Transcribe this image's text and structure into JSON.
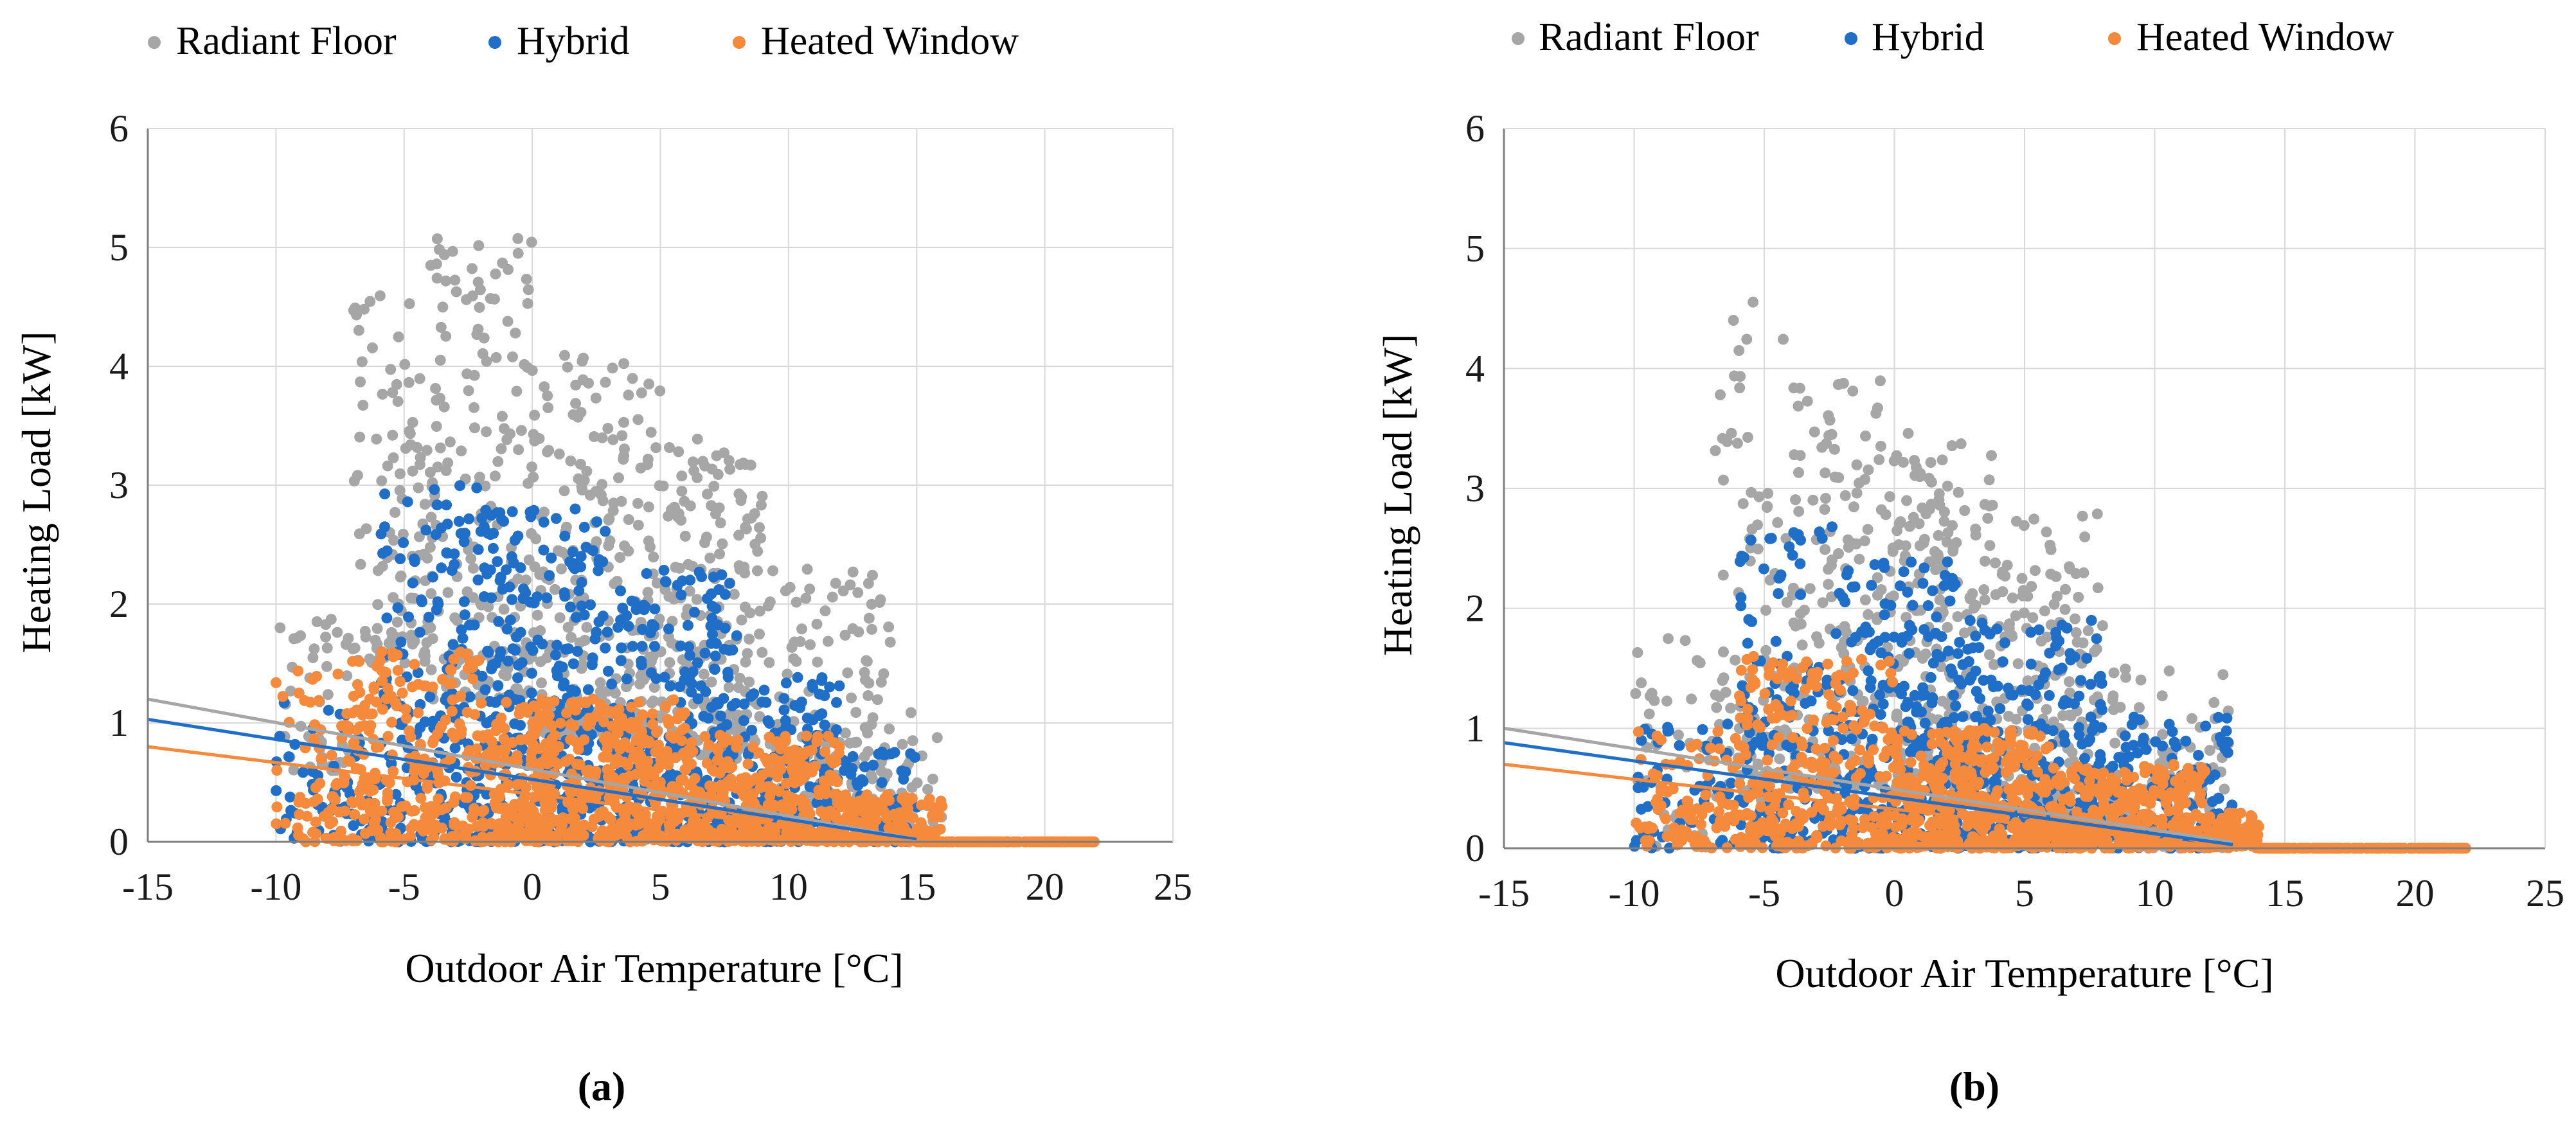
{
  "colors": {
    "radiant_floor": "#A6A6A6",
    "hybrid": "#1F6FC8",
    "heated_window": "#F58A3C",
    "grid": "#D9D9D9",
    "axis": "#7F7F7F",
    "text": "#1A1A1A"
  },
  "chart_data": [
    {
      "type": "scatter",
      "panel_label": "(a)",
      "xlabel": "Outdoor Air Temperature [°C]",
      "ylabel": "Heating Load [kW]",
      "xlim": [
        -15,
        25
      ],
      "ylim": [
        0,
        6
      ],
      "x_ticks": [
        -15,
        -10,
        -5,
        0,
        5,
        10,
        15,
        20,
        25
      ],
      "y_ticks": [
        0,
        1,
        2,
        3,
        4,
        5,
        6
      ],
      "grid": true,
      "legend": "top",
      "series": [
        {
          "name": "Radiant Floor",
          "color_key": "radiant_floor",
          "trendline": [
            [
              -15,
              1.2
            ],
            [
              15,
              0.02
            ]
          ],
          "clusters": [
            {
              "x": [
                -10,
                -7
              ],
              "y": [
                0.6,
                1.9
              ],
              "n": 45
            },
            {
              "x": [
                -7,
                -4
              ],
              "y": [
                1.5,
                4.6
              ],
              "n": 110
            },
            {
              "x": [
                -4,
                0
              ],
              "y": [
                1.2,
                5.1
              ],
              "n": 190
            },
            {
              "x": [
                0,
                5
              ],
              "y": [
                0.9,
                4.1
              ],
              "n": 260
            },
            {
              "x": [
                5,
                9
              ],
              "y": [
                0.7,
                3.4
              ],
              "n": 200
            },
            {
              "x": [
                9,
                14
              ],
              "y": [
                0.3,
                2.3
              ],
              "n": 120
            },
            {
              "x": [
                13,
                16
              ],
              "y": [
                0.0,
                1.1
              ],
              "n": 40
            }
          ]
        },
        {
          "name": "Hybrid",
          "color_key": "hybrid",
          "trendline": [
            [
              -15,
              1.03
            ],
            [
              15,
              0.02
            ]
          ],
          "clusters": [
            {
              "x": [
                -10,
                -6
              ],
              "y": [
                0.0,
                1.2
              ],
              "n": 70
            },
            {
              "x": [
                -6,
                -2
              ],
              "y": [
                0.0,
                3.0
              ],
              "n": 200
            },
            {
              "x": [
                -2,
                3
              ],
              "y": [
                0.0,
                2.8
              ],
              "n": 320
            },
            {
              "x": [
                3,
                8
              ],
              "y": [
                0.0,
                2.3
              ],
              "n": 280
            },
            {
              "x": [
                8,
                12
              ],
              "y": [
                0.0,
                1.4
              ],
              "n": 170
            },
            {
              "x": [
                12,
                15
              ],
              "y": [
                0.0,
                0.9
              ],
              "n": 70
            }
          ]
        },
        {
          "name": "Heated Window",
          "color_key": "heated_window",
          "trendline": [
            [
              -15,
              0.8
            ],
            [
              15,
              0.0
            ]
          ],
          "clusters": [
            {
              "x": [
                -10,
                -8
              ],
              "y": [
                0.0,
                1.6
              ],
              "n": 40
            },
            {
              "x": [
                -8,
                -2
              ],
              "y": [
                0.0,
                1.6
              ],
              "n": 260
            },
            {
              "x": [
                -2,
                6
              ],
              "y": [
                0.0,
                1.2
              ],
              "n": 520
            },
            {
              "x": [
                6,
                12
              ],
              "y": [
                0.0,
                0.9
              ],
              "n": 340
            },
            {
              "x": [
                12,
                16
              ],
              "y": [
                0.0,
                0.4
              ],
              "n": 140
            },
            {
              "x": [
                15,
                22
              ],
              "y": [
                0.0,
                0.0
              ],
              "n": 160
            }
          ]
        }
      ]
    },
    {
      "type": "scatter",
      "panel_label": "(b)",
      "xlabel": "Outdoor Air Temperature [°C]",
      "ylabel": "Heating Load [kW]",
      "xlim": [
        -15,
        25
      ],
      "ylim": [
        0,
        6
      ],
      "x_ticks": [
        -15,
        -10,
        -5,
        0,
        5,
        10,
        15,
        20,
        25
      ],
      "y_ticks": [
        0,
        1,
        2,
        3,
        4,
        5,
        6
      ],
      "grid": true,
      "legend": "top",
      "series": [
        {
          "name": "Radiant Floor",
          "color_key": "radiant_floor",
          "trendline": [
            [
              -15,
              1.0
            ],
            [
              13,
              0.05
            ]
          ],
          "clusters": [
            {
              "x": [
                -10,
                -7
              ],
              "y": [
                0.0,
                1.8
              ],
              "n": 40
            },
            {
              "x": [
                -7,
                -4
              ],
              "y": [
                0.4,
                4.6
              ],
              "n": 90
            },
            {
              "x": [
                -4,
                0
              ],
              "y": [
                0.5,
                3.9
              ],
              "n": 170
            },
            {
              "x": [
                0,
                4
              ],
              "y": [
                0.5,
                3.5
              ],
              "n": 220
            },
            {
              "x": [
                4,
                8
              ],
              "y": [
                0.3,
                2.8
              ],
              "n": 180
            },
            {
              "x": [
                8,
                13
              ],
              "y": [
                0.0,
                1.5
              ],
              "n": 110
            }
          ]
        },
        {
          "name": "Hybrid",
          "color_key": "hybrid",
          "trendline": [
            [
              -15,
              0.88
            ],
            [
              13,
              0.03
            ]
          ],
          "clusters": [
            {
              "x": [
                -10,
                -6
              ],
              "y": [
                0.0,
                1.1
              ],
              "n": 60
            },
            {
              "x": [
                -6,
                -2
              ],
              "y": [
                0.0,
                2.7
              ],
              "n": 170
            },
            {
              "x": [
                -2,
                3
              ],
              "y": [
                0.0,
                2.4
              ],
              "n": 300
            },
            {
              "x": [
                3,
                8
              ],
              "y": [
                0.0,
                1.9
              ],
              "n": 260
            },
            {
              "x": [
                8,
                13
              ],
              "y": [
                0.0,
                1.1
              ],
              "n": 150
            }
          ]
        },
        {
          "name": "Heated Window",
          "color_key": "heated_window",
          "trendline": [
            [
              -15,
              0.7
            ],
            [
              13,
              0.0
            ]
          ],
          "clusters": [
            {
              "x": [
                -10,
                -6
              ],
              "y": [
                0.0,
                1.0
              ],
              "n": 90
            },
            {
              "x": [
                -6,
                0
              ],
              "y": [
                0.0,
                1.6
              ],
              "n": 300
            },
            {
              "x": [
                0,
                6
              ],
              "y": [
                0.0,
                1.0
              ],
              "n": 420
            },
            {
              "x": [
                6,
                12
              ],
              "y": [
                0.0,
                0.7
              ],
              "n": 300
            },
            {
              "x": [
                12,
                14
              ],
              "y": [
                0.0,
                0.3
              ],
              "n": 80
            },
            {
              "x": [
                14,
                22
              ],
              "y": [
                0.0,
                0.0
              ],
              "n": 170
            }
          ]
        }
      ]
    }
  ]
}
